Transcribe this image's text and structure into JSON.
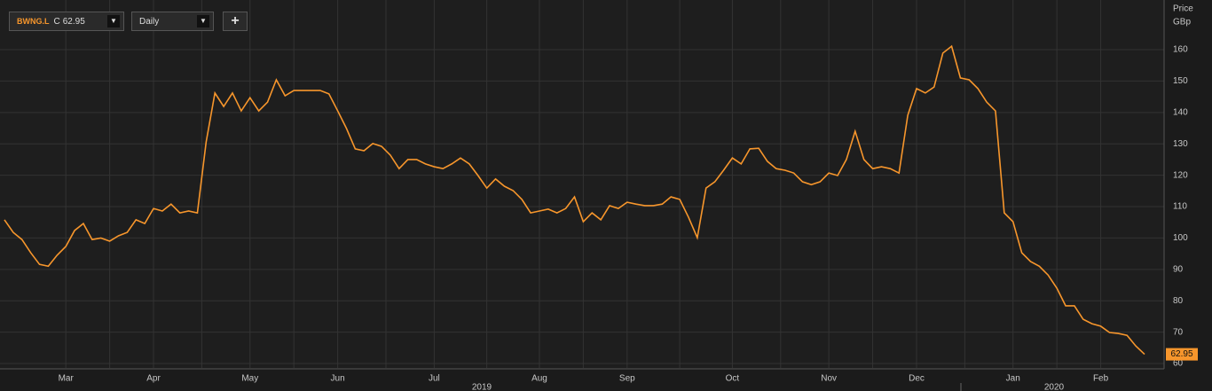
{
  "chart_data": {
    "type": "line",
    "ticker": "BWNG.L",
    "close_label": "C",
    "last_value": 62.95,
    "interval": "Daily",
    "add_button": "+",
    "y_axis_title": "Price",
    "y_axis_unit": "GBp",
    "years": [
      "2019",
      "2020"
    ],
    "categories": [
      null,
      null,
      null,
      null,
      null,
      null,
      null,
      "Mar",
      null,
      null,
      null,
      null,
      null,
      null,
      null,
      null,
      null,
      "Apr",
      null,
      null,
      null,
      null,
      null,
      null,
      null,
      null,
      null,
      null,
      "May",
      null,
      null,
      null,
      null,
      null,
      null,
      null,
      null,
      null,
      "Jun",
      null,
      null,
      null,
      null,
      null,
      null,
      null,
      null,
      null,
      null,
      "Jul",
      null,
      null,
      null,
      null,
      null,
      null,
      null,
      null,
      null,
      null,
      null,
      "Aug",
      null,
      null,
      null,
      null,
      null,
      null,
      null,
      null,
      null,
      "Sep",
      null,
      null,
      null,
      null,
      null,
      null,
      null,
      null,
      null,
      null,
      null,
      "Oct",
      null,
      null,
      null,
      null,
      null,
      null,
      null,
      null,
      null,
      null,
      "Nov",
      null,
      null,
      null,
      null,
      null,
      null,
      null,
      null,
      null,
      "Dec",
      null,
      null,
      null,
      null,
      null,
      null,
      null,
      null,
      null,
      null,
      "Jan",
      null,
      null,
      null,
      null,
      null,
      null,
      null,
      null,
      null,
      "Feb",
      null,
      null,
      null,
      null,
      null
    ],
    "series": [
      {
        "color": "#f7962c",
        "values": [
          105.8,
          101.8,
          99.5,
          95.3,
          91.6,
          91,
          94.5,
          97.3,
          102.4,
          104.6,
          99.5,
          100,
          99,
          100.7,
          101.8,
          105.8,
          104.6,
          109.4,
          108.6,
          110.8,
          108,
          108.6,
          108,
          130.6,
          146.2,
          141.9,
          146.2,
          140.5,
          144.7,
          140.5,
          143.3,
          150.4,
          145.3,
          147,
          147,
          147,
          147,
          145.9,
          140.5,
          134.9,
          128.4,
          127.8,
          130.1,
          129.2,
          126.4,
          122.1,
          125,
          125,
          123.6,
          122.7,
          122.1,
          123.6,
          125.5,
          123.6,
          119.9,
          115.9,
          118.8,
          116.5,
          115.1,
          112.3,
          108,
          108.6,
          109.2,
          108,
          109.4,
          113.1,
          105.2,
          108,
          105.8,
          110.3,
          109.4,
          111.4,
          110.8,
          110.3,
          110.3,
          110.8,
          113.1,
          112.3,
          106.6,
          100.1,
          115.9,
          117.9,
          121.6,
          125.5,
          123.6,
          128.4,
          128.6,
          124.4,
          122.1,
          121.6,
          120.7,
          117.9,
          117,
          117.9,
          120.7,
          119.9,
          125,
          134,
          125,
          122.1,
          122.7,
          122.1,
          120.7,
          139.1,
          147.6,
          146.2,
          148.1,
          158.9,
          161.1,
          151,
          150.4,
          147.6,
          143.3,
          140.5,
          108,
          105.2,
          95.3,
          92.5,
          91,
          88.2,
          84,
          78.4,
          78.4,
          74.1,
          72.7,
          71.9,
          69.9,
          69.6,
          69,
          65.6,
          62.95
        ]
      }
    ],
    "ylim": [
      58.6,
      173
    ],
    "yticks": [
      60,
      70,
      80,
      90,
      100,
      110,
      120,
      130,
      140,
      150,
      160
    ],
    "grid": true
  }
}
